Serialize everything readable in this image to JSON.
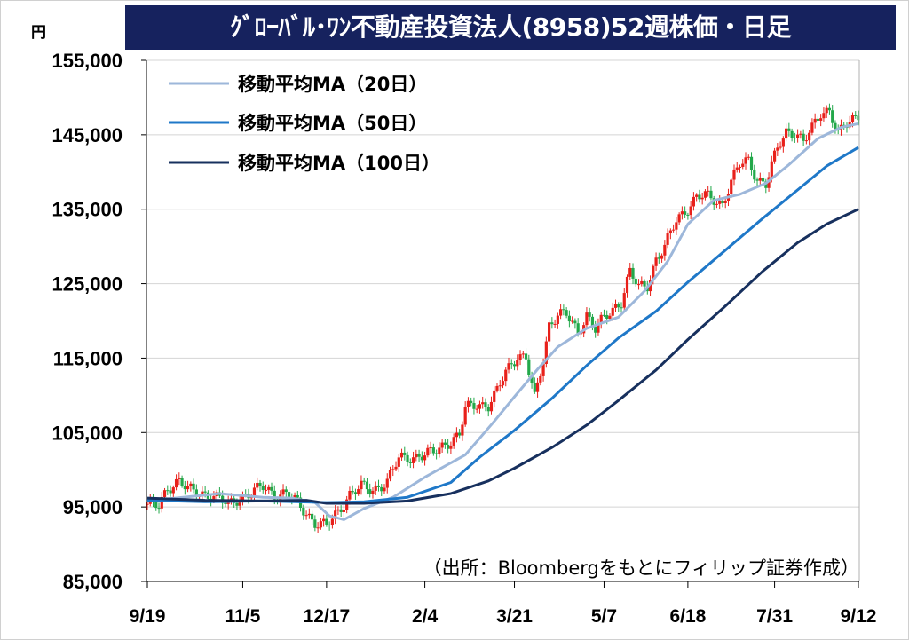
{
  "title": "ｸﾞﾛｰﾊﾞﾙ･ﾜﾝ不動産投資法人(8958)52週株価・日足",
  "unit_label": "円",
  "source_note": "（出所：Bloombergをもとにフィリップ証券作成）",
  "colors": {
    "title_bg": "#16225e",
    "up_candle": "#e8201a",
    "down_candle": "#22a84a",
    "ma20": "#9db7da",
    "ma50": "#1f78c8",
    "ma100": "#17305e",
    "grid": "#d4d4d4"
  },
  "chart_data": {
    "type": "line",
    "subtype": "candlestick-with-moving-averages",
    "ylim": [
      85000,
      155000
    ],
    "y_ticks": [
      "155,000",
      "145,000",
      "135,000",
      "125,000",
      "115,000",
      "105,000",
      "95,000",
      "85,000"
    ],
    "x_tick_labels": [
      "9/19",
      "11/5",
      "12/17",
      "2/4",
      "3/21",
      "5/7",
      "6/18",
      "7/31",
      "9/12"
    ],
    "x_tick_index": [
      0,
      33,
      62,
      96,
      127,
      158,
      187,
      217,
      246
    ],
    "n_days": 247,
    "legend_position": "top-left",
    "grid": true,
    "series": [
      {
        "name": "移動平均MA（20日）",
        "color": "#9db7da",
        "points": [
          [
            0,
            95800
          ],
          [
            15,
            96400
          ],
          [
            25,
            96800
          ],
          [
            40,
            96300
          ],
          [
            50,
            96200
          ],
          [
            58,
            95600
          ],
          [
            63,
            93800
          ],
          [
            68,
            93300
          ],
          [
            75,
            94800
          ],
          [
            85,
            96300
          ],
          [
            96,
            99000
          ],
          [
            110,
            102000
          ],
          [
            120,
            106500
          ],
          [
            127,
            109800
          ],
          [
            135,
            113500
          ],
          [
            142,
            116500
          ],
          [
            152,
            119000
          ],
          [
            163,
            120500
          ],
          [
            172,
            124000
          ],
          [
            180,
            128000
          ],
          [
            187,
            133000
          ],
          [
            196,
            136200
          ],
          [
            205,
            137000
          ],
          [
            214,
            138500
          ],
          [
            222,
            141000
          ],
          [
            232,
            144500
          ],
          [
            240,
            146000
          ],
          [
            246,
            146500
          ]
        ]
      },
      {
        "name": "移動平均MA（50日）",
        "color": "#1f78c8",
        "points": [
          [
            0,
            95900
          ],
          [
            20,
            95700
          ],
          [
            40,
            95800
          ],
          [
            62,
            95600
          ],
          [
            75,
            95700
          ],
          [
            90,
            96300
          ],
          [
            105,
            98300
          ],
          [
            115,
            101700
          ],
          [
            127,
            105300
          ],
          [
            140,
            109600
          ],
          [
            152,
            114000
          ],
          [
            163,
            117700
          ],
          [
            176,
            121300
          ],
          [
            187,
            125200
          ],
          [
            200,
            129500
          ],
          [
            213,
            133800
          ],
          [
            225,
            137600
          ],
          [
            235,
            140800
          ],
          [
            246,
            143300
          ]
        ]
      },
      {
        "name": "移動平均MA（100日）",
        "color": "#17305e",
        "points": [
          [
            0,
            96200
          ],
          [
            20,
            95900
          ],
          [
            40,
            95800
          ],
          [
            55,
            95900
          ],
          [
            62,
            95500
          ],
          [
            75,
            95500
          ],
          [
            90,
            95800
          ],
          [
            105,
            96800
          ],
          [
            118,
            98500
          ],
          [
            127,
            100200
          ],
          [
            140,
            103000
          ],
          [
            152,
            106000
          ],
          [
            163,
            109300
          ],
          [
            176,
            113400
          ],
          [
            187,
            117500
          ],
          [
            200,
            122000
          ],
          [
            213,
            126700
          ],
          [
            225,
            130500
          ],
          [
            235,
            133000
          ],
          [
            246,
            135000
          ]
        ]
      },
      {
        "name": "日足",
        "type": "ohlc-path",
        "color_up": "#e8201a",
        "color_down": "#22a84a",
        "close_path": [
          [
            0,
            95400
          ],
          [
            4,
            95000
          ],
          [
            7,
            97500
          ],
          [
            11,
            98700
          ],
          [
            14,
            97300
          ],
          [
            18,
            96800
          ],
          [
            22,
            96700
          ],
          [
            25,
            96100
          ],
          [
            28,
            95200
          ],
          [
            32,
            96300
          ],
          [
            36,
            96900
          ],
          [
            40,
            97700
          ],
          [
            44,
            96700
          ],
          [
            48,
            96800
          ],
          [
            52,
            95500
          ],
          [
            55,
            94200
          ],
          [
            58,
            92900
          ],
          [
            62,
            92400
          ],
          [
            66,
            94400
          ],
          [
            70,
            96700
          ],
          [
            74,
            97700
          ],
          [
            78,
            97300
          ],
          [
            83,
            98400
          ],
          [
            87,
            101500
          ],
          [
            91,
            101700
          ],
          [
            95,
            101900
          ],
          [
            99,
            102300
          ],
          [
            103,
            103500
          ],
          [
            106,
            104100
          ],
          [
            108,
            104600
          ],
          [
            110,
            108200
          ],
          [
            114,
            108900
          ],
          [
            118,
            108600
          ],
          [
            121,
            110500
          ],
          [
            124,
            113200
          ],
          [
            128,
            115400
          ],
          [
            131,
            115000
          ],
          [
            134,
            109500
          ],
          [
            137,
            114800
          ],
          [
            139,
            119500
          ],
          [
            142,
            120900
          ],
          [
            145,
            120800
          ],
          [
            149,
            118400
          ],
          [
            152,
            120900
          ],
          [
            155,
            118900
          ],
          [
            158,
            120300
          ],
          [
            161,
            121500
          ],
          [
            164,
            122700
          ],
          [
            167,
            126600
          ],
          [
            170,
            124400
          ],
          [
            173,
            124800
          ],
          [
            176,
            128300
          ],
          [
            179,
            129900
          ],
          [
            183,
            133500
          ],
          [
            187,
            135200
          ],
          [
            190,
            136600
          ],
          [
            193,
            136800
          ],
          [
            196,
            136300
          ],
          [
            199,
            135700
          ],
          [
            202,
            138700
          ],
          [
            205,
            141000
          ],
          [
            208,
            141600
          ],
          [
            211,
            139100
          ],
          [
            214,
            138300
          ],
          [
            218,
            143200
          ],
          [
            221,
            145500
          ],
          [
            224,
            145300
          ],
          [
            227,
            143900
          ],
          [
            230,
            145900
          ],
          [
            233,
            148100
          ],
          [
            236,
            148300
          ],
          [
            239,
            144900
          ],
          [
            242,
            146500
          ],
          [
            246,
            147800
          ]
        ]
      }
    ]
  }
}
